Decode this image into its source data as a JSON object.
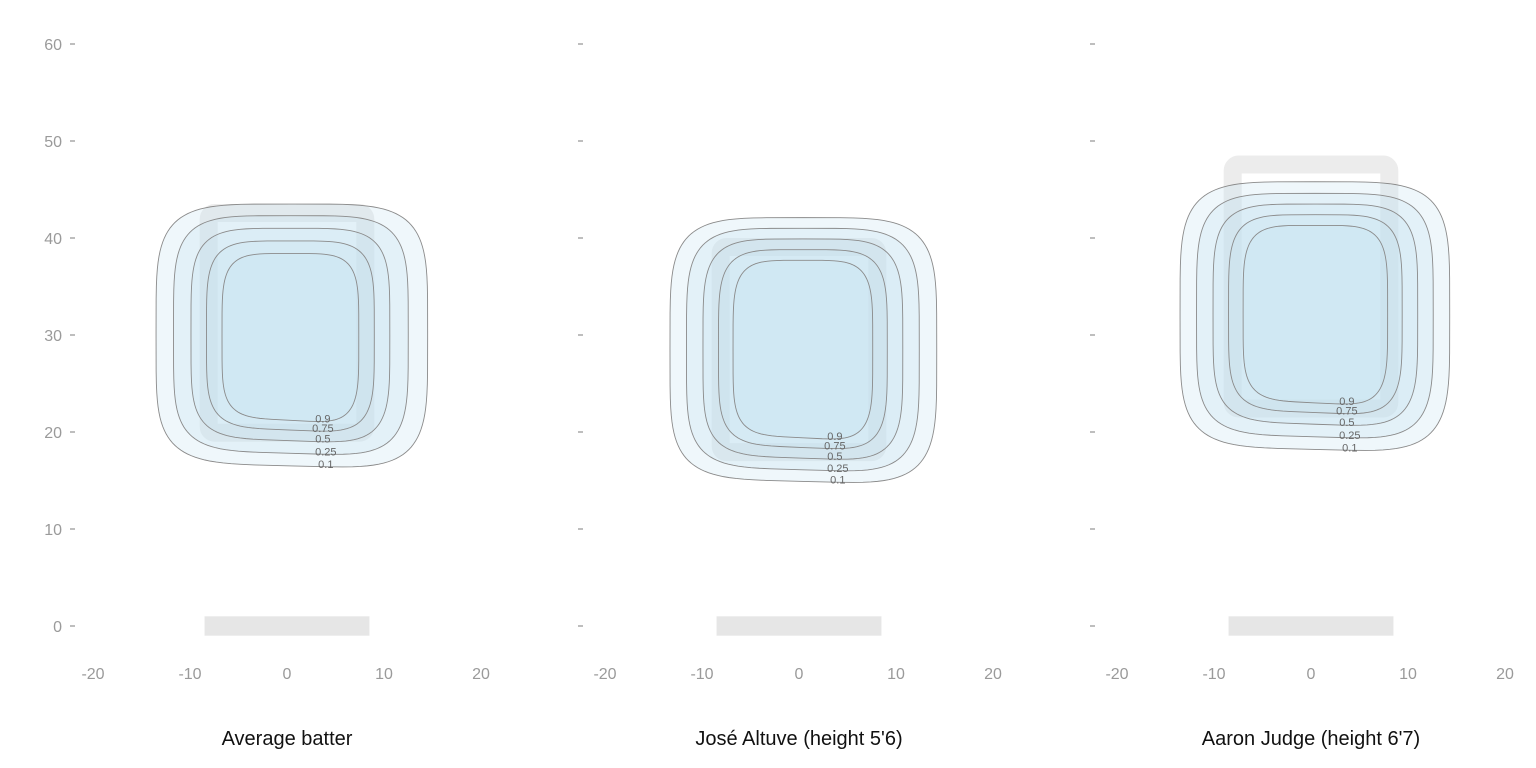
{
  "chart_data": [
    {
      "type": "contour",
      "title": "Average batter",
      "xlim": [
        -20,
        20
      ],
      "ylim": [
        0,
        60
      ],
      "x_ticks": [
        "-20",
        "-10",
        "0",
        "10",
        "20"
      ],
      "y_ticks": [
        "0",
        "10",
        "20",
        "30",
        "40",
        "50",
        "60"
      ],
      "show_y_tick_labels": true,
      "home_plate": {
        "x": [
          -8.5,
          8.5
        ],
        "y": [
          -1,
          1
        ]
      },
      "strike_zone": {
        "x": [
          -9,
          9
        ],
        "y": [
          19,
          43.5
        ]
      },
      "contours": [
        {
          "level": "0.1",
          "x": [
            -13.5,
            14.5
          ],
          "y": [
            16.5,
            43.5
          ]
        },
        {
          "level": "0.25",
          "x": [
            -11.7,
            12.5
          ],
          "y": [
            17.8,
            42.3
          ]
        },
        {
          "level": "0.5",
          "x": [
            -9.9,
            10.6
          ],
          "y": [
            19.1,
            41.0
          ]
        },
        {
          "level": "0.75",
          "x": [
            -8.3,
            9.0
          ],
          "y": [
            20.2,
            39.7
          ]
        },
        {
          "level": "0.9",
          "x": [
            -6.7,
            7.4
          ],
          "y": [
            21.2,
            38.4
          ]
        }
      ]
    },
    {
      "type": "contour",
      "title": "José Altuve (height 5'6)",
      "xlim": [
        -20,
        20
      ],
      "ylim": [
        0,
        60
      ],
      "x_ticks": [
        "-20",
        "-10",
        "0",
        "10",
        "20"
      ],
      "y_ticks": [
        "0",
        "10",
        "20",
        "30",
        "40",
        "50",
        "60"
      ],
      "show_y_tick_labels": false,
      "home_plate": {
        "x": [
          -8.5,
          8.5
        ],
        "y": [
          -1,
          1
        ]
      },
      "strike_zone": {
        "x": [
          -9,
          9
        ],
        "y": [
          17,
          40
        ]
      },
      "contours": [
        {
          "level": "0.1",
          "x": [
            -13.3,
            14.2
          ],
          "y": [
            14.9,
            42.1
          ]
        },
        {
          "level": "0.25",
          "x": [
            -11.6,
            12.4
          ],
          "y": [
            16.1,
            41.0
          ]
        },
        {
          "level": "0.5",
          "x": [
            -9.9,
            10.7
          ],
          "y": [
            17.3,
            39.9
          ]
        },
        {
          "level": "0.75",
          "x": [
            -8.3,
            9.1
          ],
          "y": [
            18.4,
            38.8
          ]
        },
        {
          "level": "0.9",
          "x": [
            -6.8,
            7.6
          ],
          "y": [
            19.4,
            37.7
          ]
        }
      ]
    },
    {
      "type": "contour",
      "title": "Aaron Judge (height 6'7)",
      "xlim": [
        -20,
        20
      ],
      "ylim": [
        0,
        60
      ],
      "x_ticks": [
        "-20",
        "-10",
        "0",
        "10",
        "20"
      ],
      "y_ticks": [
        "0",
        "10",
        "20",
        "30",
        "40",
        "50",
        "60"
      ],
      "show_y_tick_labels": false,
      "home_plate": {
        "x": [
          -8.5,
          8.5
        ],
        "y": [
          -1,
          1
        ]
      },
      "strike_zone": {
        "x": [
          -9,
          9
        ],
        "y": [
          21.5,
          48.5
        ]
      },
      "contours": [
        {
          "level": "0.1",
          "x": [
            -13.5,
            14.3
          ],
          "y": [
            18.2,
            45.8
          ]
        },
        {
          "level": "0.25",
          "x": [
            -11.8,
            12.6
          ],
          "y": [
            19.5,
            44.6
          ]
        },
        {
          "level": "0.5",
          "x": [
            -10.1,
            11.0
          ],
          "y": [
            20.8,
            43.5
          ]
        },
        {
          "level": "0.75",
          "x": [
            -8.5,
            9.4
          ],
          "y": [
            22.0,
            42.4
          ]
        },
        {
          "level": "0.9",
          "x": [
            -7.0,
            7.9
          ],
          "y": [
            23.0,
            41.3
          ]
        }
      ]
    }
  ]
}
